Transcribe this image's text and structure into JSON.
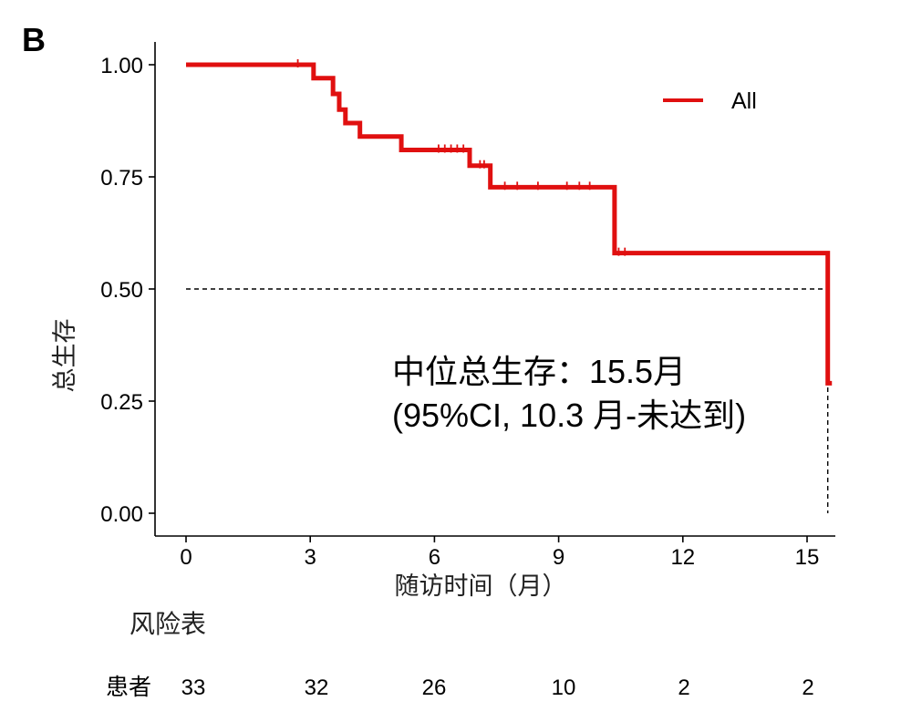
{
  "panel_label": "B",
  "chart_data": {
    "type": "line",
    "subtype": "kaplan-meier-step",
    "xlabel": "随访时间（月）",
    "ylabel": "总生存",
    "xlim": [
      0,
      15.6
    ],
    "ylim": [
      0,
      1
    ],
    "x_ticks": [
      0,
      3,
      6,
      9,
      12,
      15
    ],
    "y_ticks": [
      0,
      0.25,
      0.5,
      0.75,
      1
    ],
    "y_tick_labels": [
      "0.00",
      "0.25",
      "0.50",
      "0.75",
      "1.00"
    ],
    "grid": false,
    "legend": {
      "position": "top-right",
      "entries": [
        "All"
      ]
    },
    "series": [
      {
        "name": "All",
        "color": "#e01010",
        "steps": [
          {
            "x": 0,
            "y": 1.0
          },
          {
            "x": 3.08,
            "y": 0.97
          },
          {
            "x": 3.55,
            "y": 0.935
          },
          {
            "x": 3.7,
            "y": 0.9
          },
          {
            "x": 3.85,
            "y": 0.87
          },
          {
            "x": 4.2,
            "y": 0.84
          },
          {
            "x": 5.2,
            "y": 0.81
          },
          {
            "x": 6.85,
            "y": 0.775
          },
          {
            "x": 7.35,
            "y": 0.727
          },
          {
            "x": 10.35,
            "y": 0.58
          },
          {
            "x": 15.5,
            "y": 0.29
          }
        ],
        "end_x": 15.6,
        "censor_marks": [
          {
            "x": 2.7,
            "y": 1.0
          },
          {
            "x": 6.1,
            "y": 0.81
          },
          {
            "x": 6.25,
            "y": 0.81
          },
          {
            "x": 6.4,
            "y": 0.81
          },
          {
            "x": 6.55,
            "y": 0.81
          },
          {
            "x": 6.7,
            "y": 0.81
          },
          {
            "x": 7.1,
            "y": 0.775
          },
          {
            "x": 7.2,
            "y": 0.775
          },
          {
            "x": 7.7,
            "y": 0.727
          },
          {
            "x": 8.0,
            "y": 0.727
          },
          {
            "x": 8.5,
            "y": 0.727
          },
          {
            "x": 9.2,
            "y": 0.727
          },
          {
            "x": 9.5,
            "y": 0.727
          },
          {
            "x": 9.75,
            "y": 0.727
          },
          {
            "x": 10.45,
            "y": 0.58
          },
          {
            "x": 10.6,
            "y": 0.58
          }
        ]
      }
    ],
    "median_reference": {
      "y": 0.5,
      "x": 15.5
    },
    "annotation": {
      "line1": "中位总生存：15.5月",
      "line2": "(95%CI, 10.3 月-未达到)"
    },
    "risk_table": {
      "title": "风险表",
      "row_label": "患者",
      "row_label_color": "#e01010",
      "times": [
        0,
        3,
        6,
        9,
        12,
        15
      ],
      "values": [
        "33",
        "32",
        "26",
        "10",
        "2",
        "2"
      ]
    }
  }
}
